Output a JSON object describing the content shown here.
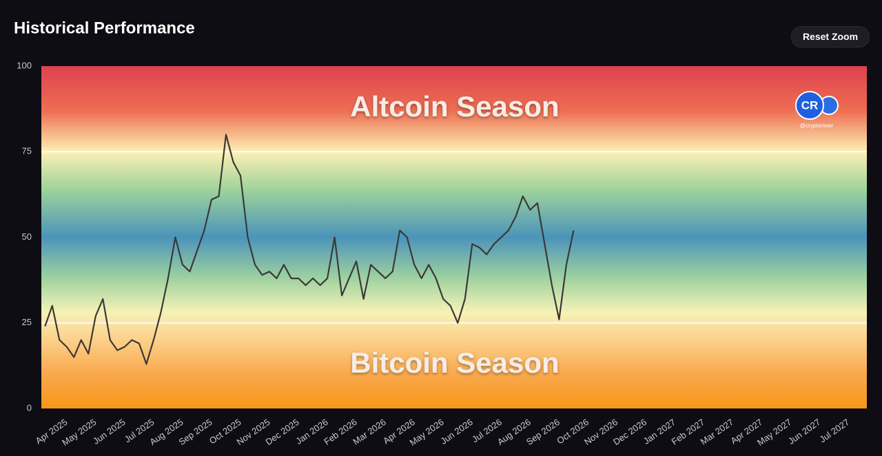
{
  "chart_data": {
    "type": "line",
    "title": "Historical Performance",
    "button": "Reset Zoom",
    "annotations": [
      "Altcoin Season",
      "Bitcoin Season"
    ],
    "watermark": {
      "logo": "CR",
      "handle": "@cryptorover"
    },
    "categories": [
      null,
      null,
      null,
      "Apr 2025",
      null,
      null,
      null,
      "May 2025",
      null,
      null,
      null,
      "Jun 2025",
      null,
      null,
      null,
      "Jul 2025",
      null,
      null,
      null,
      "Aug 2025",
      null,
      null,
      null,
      "Sep 2025",
      null,
      null,
      null,
      "Oct 2025",
      null,
      null,
      null,
      "Nov 2025",
      null,
      null,
      null,
      "Dec 2025",
      null,
      null,
      null,
      "Jan 2026",
      null,
      null,
      null,
      "Feb 2026",
      null,
      null,
      null,
      "Mar 2026",
      null,
      null,
      null,
      "Apr 2026",
      null,
      null,
      null,
      "May 2026",
      null,
      null,
      null,
      "Jun 2026",
      null,
      null,
      null,
      "Jul 2026",
      null,
      null,
      null,
      "Aug 2026",
      null,
      null,
      null,
      "Sep 2026",
      null,
      null,
      null,
      "Oct 2026",
      null,
      null,
      null,
      "Nov 2026",
      null,
      null,
      null,
      "Dec 2026",
      null,
      null,
      null,
      "Jan 2027",
      null,
      null,
      null,
      "Feb 2027",
      null,
      null,
      null,
      "Mar 2027",
      null,
      null,
      null,
      "Apr 2027",
      null,
      null,
      null,
      "May 2027",
      null,
      null,
      null,
      "Jun 2027",
      null,
      null,
      null,
      "Jul 2027",
      null,
      null
    ],
    "series": [
      {
        "color": "#3a3838",
        "values": [
          24,
          30,
          20,
          18,
          15,
          20,
          16,
          27,
          32,
          20,
          17,
          18,
          20,
          19,
          13,
          20,
          28,
          38,
          50,
          42,
          40,
          46,
          52,
          61,
          62,
          80,
          72,
          68,
          50,
          42,
          39,
          40,
          38,
          42,
          38,
          38,
          36,
          38,
          36,
          38,
          50,
          33,
          38,
          43,
          32,
          42,
          40,
          38,
          40,
          52,
          50,
          42,
          38,
          42,
          38,
          32,
          30,
          25,
          32,
          48,
          47,
          45,
          48,
          50,
          52,
          56,
          62,
          58,
          60,
          48,
          36,
          26,
          42,
          52,
          null,
          null,
          null,
          null,
          null,
          null,
          null,
          null,
          null,
          null,
          null,
          null,
          null,
          null,
          null,
          null,
          null,
          null,
          null,
          null,
          null,
          null,
          null,
          null,
          null,
          null,
          null,
          null,
          null,
          null,
          null,
          null,
          null,
          null,
          null,
          null,
          null,
          null,
          null,
          null
        ]
      }
    ],
    "ylim": [
      0,
      100
    ],
    "yticks": [
      0,
      25,
      50,
      75,
      100
    ],
    "reference_lines": [
      25,
      75
    ],
    "grid": false
  }
}
